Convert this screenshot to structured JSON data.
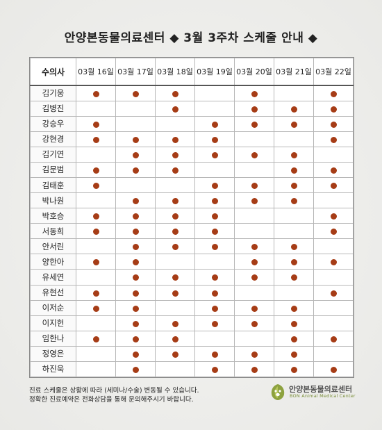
{
  "title": "안양본동물의료센터 ◆ 3월 3주차 스케줄 안내 ◆",
  "table": {
    "name_header": "수의사",
    "dates": [
      "03월 16일",
      "03월 17일",
      "03월 18일",
      "03월 19일",
      "03월 20일",
      "03월 21일",
      "03월 22일"
    ],
    "rows": [
      {
        "name": "김기웅",
        "days": [
          1,
          1,
          1,
          0,
          1,
          0,
          1
        ]
      },
      {
        "name": "김병진",
        "days": [
          0,
          0,
          1,
          0,
          1,
          1,
          1
        ]
      },
      {
        "name": "강승우",
        "days": [
          1,
          0,
          0,
          1,
          1,
          1,
          1
        ]
      },
      {
        "name": "강현경",
        "days": [
          1,
          1,
          1,
          1,
          0,
          0,
          1
        ]
      },
      {
        "name": "김기연",
        "days": [
          0,
          1,
          1,
          1,
          1,
          1,
          0
        ]
      },
      {
        "name": "김문범",
        "days": [
          1,
          1,
          1,
          0,
          0,
          1,
          1
        ]
      },
      {
        "name": "김태훈",
        "days": [
          1,
          0,
          0,
          1,
          1,
          1,
          1
        ]
      },
      {
        "name": "박나원",
        "days": [
          0,
          1,
          1,
          1,
          1,
          1,
          0
        ]
      },
      {
        "name": "박호승",
        "days": [
          1,
          1,
          1,
          1,
          0,
          0,
          1
        ]
      },
      {
        "name": "서동희",
        "days": [
          1,
          1,
          1,
          1,
          0,
          0,
          1
        ]
      },
      {
        "name": "안서린",
        "days": [
          0,
          1,
          1,
          1,
          1,
          1,
          0
        ]
      },
      {
        "name": "양한아",
        "days": [
          1,
          1,
          0,
          0,
          1,
          1,
          1
        ]
      },
      {
        "name": "유세연",
        "days": [
          0,
          1,
          1,
          1,
          1,
          1,
          0
        ]
      },
      {
        "name": "유현선",
        "days": [
          1,
          1,
          1,
          1,
          0,
          0,
          1
        ]
      },
      {
        "name": "이저순",
        "days": [
          1,
          1,
          0,
          1,
          1,
          1,
          0
        ]
      },
      {
        "name": "이지헌",
        "days": [
          0,
          1,
          1,
          1,
          1,
          1,
          0
        ]
      },
      {
        "name": "임한나",
        "days": [
          1,
          1,
          1,
          0,
          0,
          1,
          1
        ]
      },
      {
        "name": "정영은",
        "days": [
          0,
          1,
          1,
          1,
          1,
          1,
          0
        ]
      },
      {
        "name": "하진욱",
        "days": [
          0,
          1,
          0,
          1,
          1,
          1,
          1
        ]
      }
    ]
  },
  "notes": [
    "진료 스케줄은 상황에 따라 (세미나/수술) 변동될 수 있습니다.",
    "정확한 진료예약은 전화상담을 통해 문의해주시기 바랍니다."
  ],
  "logo": {
    "name_ko": "안양본동물의료센터",
    "name_en": "BON Animal Medical Center"
  },
  "colors": {
    "dot": "#a63c16",
    "logo_green": "#7a8f3a"
  }
}
